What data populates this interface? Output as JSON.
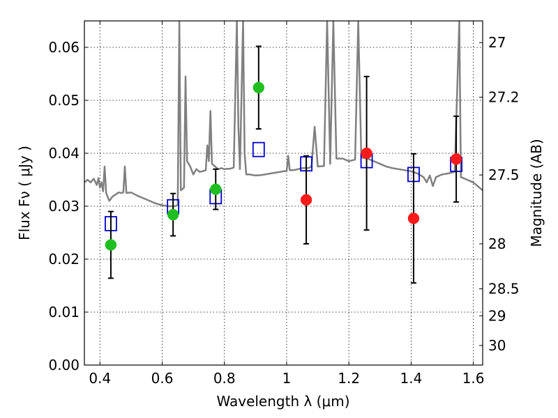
{
  "chart_data": {
    "type": "scatter",
    "xlabel": "Wavelength  λ (μm)",
    "ylabel": "Flux  Fν  ( μJy )",
    "ylabel_right": "Magnitude (AB)",
    "xlim": [
      0.35,
      1.63
    ],
    "ylim": [
      0.0,
      0.065
    ],
    "x_ticks": [
      0.4,
      0.6,
      0.8,
      1.0,
      1.2,
      1.4,
      1.6
    ],
    "x_tick_labels": [
      "0.4",
      "0.6",
      "0.8",
      "1",
      "1.2",
      "1.4",
      "1.6"
    ],
    "y_ticks": [
      0.0,
      0.01,
      0.02,
      0.03,
      0.04,
      0.05,
      0.06
    ],
    "y_tick_labels": [
      "0.00",
      "0.01",
      "0.02",
      "0.03",
      "0.04",
      "0.05",
      "0.06"
    ],
    "right_ticks": [
      {
        "label": "27",
        "flux": 0.0609
      },
      {
        "label": "27.2",
        "flux": 0.0506
      },
      {
        "label": "27.5",
        "flux": 0.0359
      },
      {
        "label": "28",
        "flux": 0.0229
      },
      {
        "label": "28.5",
        "flux": 0.0144
      },
      {
        "label": "29",
        "flux": 0.0093
      },
      {
        "label": "30",
        "flux": 0.0037
      }
    ],
    "grid": true,
    "series": [
      {
        "marker": "circle",
        "color": "#1fbf1f",
        "points": [
          {
            "x": 0.435,
            "y": 0.0227,
            "err": 0.0063
          },
          {
            "x": 0.635,
            "y": 0.0284,
            "err": 0.004
          },
          {
            "x": 0.772,
            "y": 0.0332,
            "err": 0.0038
          },
          {
            "x": 0.91,
            "y": 0.0524,
            "err": 0.0078
          }
        ]
      },
      {
        "marker": "circle",
        "color": "#ff1a1a",
        "points": [
          {
            "x": 1.063,
            "y": 0.0312,
            "err": 0.0083
          },
          {
            "x": 1.257,
            "y": 0.04,
            "err": 0.0145
          },
          {
            "x": 1.408,
            "y": 0.0277,
            "err": 0.0122
          },
          {
            "x": 1.545,
            "y": 0.0389,
            "err": 0.0081
          }
        ]
      },
      {
        "marker": "open-square",
        "color": "#0000cc",
        "points": [
          {
            "x": 0.435,
            "y": 0.0267
          },
          {
            "x": 0.635,
            "y": 0.0299
          },
          {
            "x": 0.772,
            "y": 0.0318
          },
          {
            "x": 0.91,
            "y": 0.0407
          },
          {
            "x": 1.063,
            "y": 0.038
          },
          {
            "x": 1.257,
            "y": 0.0386
          },
          {
            "x": 1.408,
            "y": 0.036
          },
          {
            "x": 1.545,
            "y": 0.0379
          }
        ]
      },
      {
        "marker": "line",
        "color": "#808080",
        "points": [
          [
            0.35,
            0.0345
          ],
          [
            0.36,
            0.035
          ],
          [
            0.37,
            0.0345
          ],
          [
            0.38,
            0.0352
          ],
          [
            0.39,
            0.034
          ],
          [
            0.395,
            0.0353
          ],
          [
            0.4,
            0.0335
          ],
          [
            0.405,
            0.0345
          ],
          [
            0.41,
            0.0328
          ],
          [
            0.415,
            0.0375
          ],
          [
            0.42,
            0.0325
          ],
          [
            0.43,
            0.031
          ],
          [
            0.44,
            0.0318
          ],
          [
            0.45,
            0.0322
          ],
          [
            0.46,
            0.0326
          ],
          [
            0.47,
            0.0325
          ],
          [
            0.475,
            0.0326
          ],
          [
            0.48,
            0.0375
          ],
          [
            0.485,
            0.0325
          ],
          [
            0.5,
            0.0326
          ],
          [
            0.52,
            0.032
          ],
          [
            0.54,
            0.0315
          ],
          [
            0.56,
            0.031
          ],
          [
            0.58,
            0.0305
          ],
          [
            0.6,
            0.0302
          ],
          [
            0.62,
            0.03
          ],
          [
            0.64,
            0.03
          ],
          [
            0.65,
            0.0302
          ],
          [
            0.655,
            0.065
          ],
          [
            0.66,
            0.033
          ],
          [
            0.67,
            0.0335
          ],
          [
            0.675,
            0.0545
          ],
          [
            0.68,
            0.0385
          ],
          [
            0.69,
            0.0375
          ],
          [
            0.7,
            0.036
          ],
          [
            0.71,
            0.037
          ],
          [
            0.72,
            0.0365
          ],
          [
            0.73,
            0.0366
          ],
          [
            0.74,
            0.0368
          ],
          [
            0.745,
            0.0415
          ],
          [
            0.75,
            0.0385
          ],
          [
            0.755,
            0.048
          ],
          [
            0.76,
            0.038
          ],
          [
            0.77,
            0.0375
          ],
          [
            0.78,
            0.037
          ],
          [
            0.79,
            0.0372
          ],
          [
            0.8,
            0.037
          ],
          [
            0.82,
            0.0371
          ],
          [
            0.83,
            0.0373
          ],
          [
            0.84,
            0.065
          ],
          [
            0.845,
            0.045
          ],
          [
            0.85,
            0.037
          ],
          [
            0.86,
            0.065
          ],
          [
            0.865,
            0.04
          ],
          [
            0.87,
            0.036
          ],
          [
            0.88,
            0.036
          ],
          [
            0.9,
            0.0358
          ],
          [
            0.92,
            0.0359
          ],
          [
            0.95,
            0.0362
          ],
          [
            0.98,
            0.0365
          ],
          [
            1.0,
            0.0367
          ],
          [
            1.005,
            0.0395
          ],
          [
            1.01,
            0.0368
          ],
          [
            1.02,
            0.0368
          ],
          [
            1.03,
            0.0369
          ],
          [
            1.05,
            0.0372
          ],
          [
            1.07,
            0.0372
          ],
          [
            1.08,
            0.0375
          ],
          [
            1.09,
            0.045
          ],
          [
            1.1,
            0.0375
          ],
          [
            1.12,
            0.0376
          ],
          [
            1.13,
            0.065
          ],
          [
            1.14,
            0.038
          ],
          [
            1.15,
            0.065
          ],
          [
            1.16,
            0.039
          ],
          [
            1.18,
            0.039
          ],
          [
            1.2,
            0.0385
          ],
          [
            1.22,
            0.0388
          ],
          [
            1.23,
            0.065
          ],
          [
            1.24,
            0.0392
          ],
          [
            1.26,
            0.039
          ],
          [
            1.28,
            0.0385
          ],
          [
            1.3,
            0.038
          ],
          [
            1.32,
            0.0375
          ],
          [
            1.34,
            0.0372
          ],
          [
            1.36,
            0.037
          ],
          [
            1.38,
            0.0368
          ],
          [
            1.4,
            0.0366
          ],
          [
            1.42,
            0.0362
          ],
          [
            1.44,
            0.0355
          ],
          [
            1.45,
            0.0345
          ],
          [
            1.46,
            0.0358
          ],
          [
            1.47,
            0.0338
          ],
          [
            1.48,
            0.0355
          ],
          [
            1.5,
            0.036
          ],
          [
            1.52,
            0.0362
          ],
          [
            1.54,
            0.0365
          ],
          [
            1.555,
            0.065
          ],
          [
            1.56,
            0.0355
          ],
          [
            1.58,
            0.035
          ],
          [
            1.6,
            0.0345
          ],
          [
            1.62,
            0.0335
          ],
          [
            1.63,
            0.033
          ]
        ]
      }
    ]
  }
}
